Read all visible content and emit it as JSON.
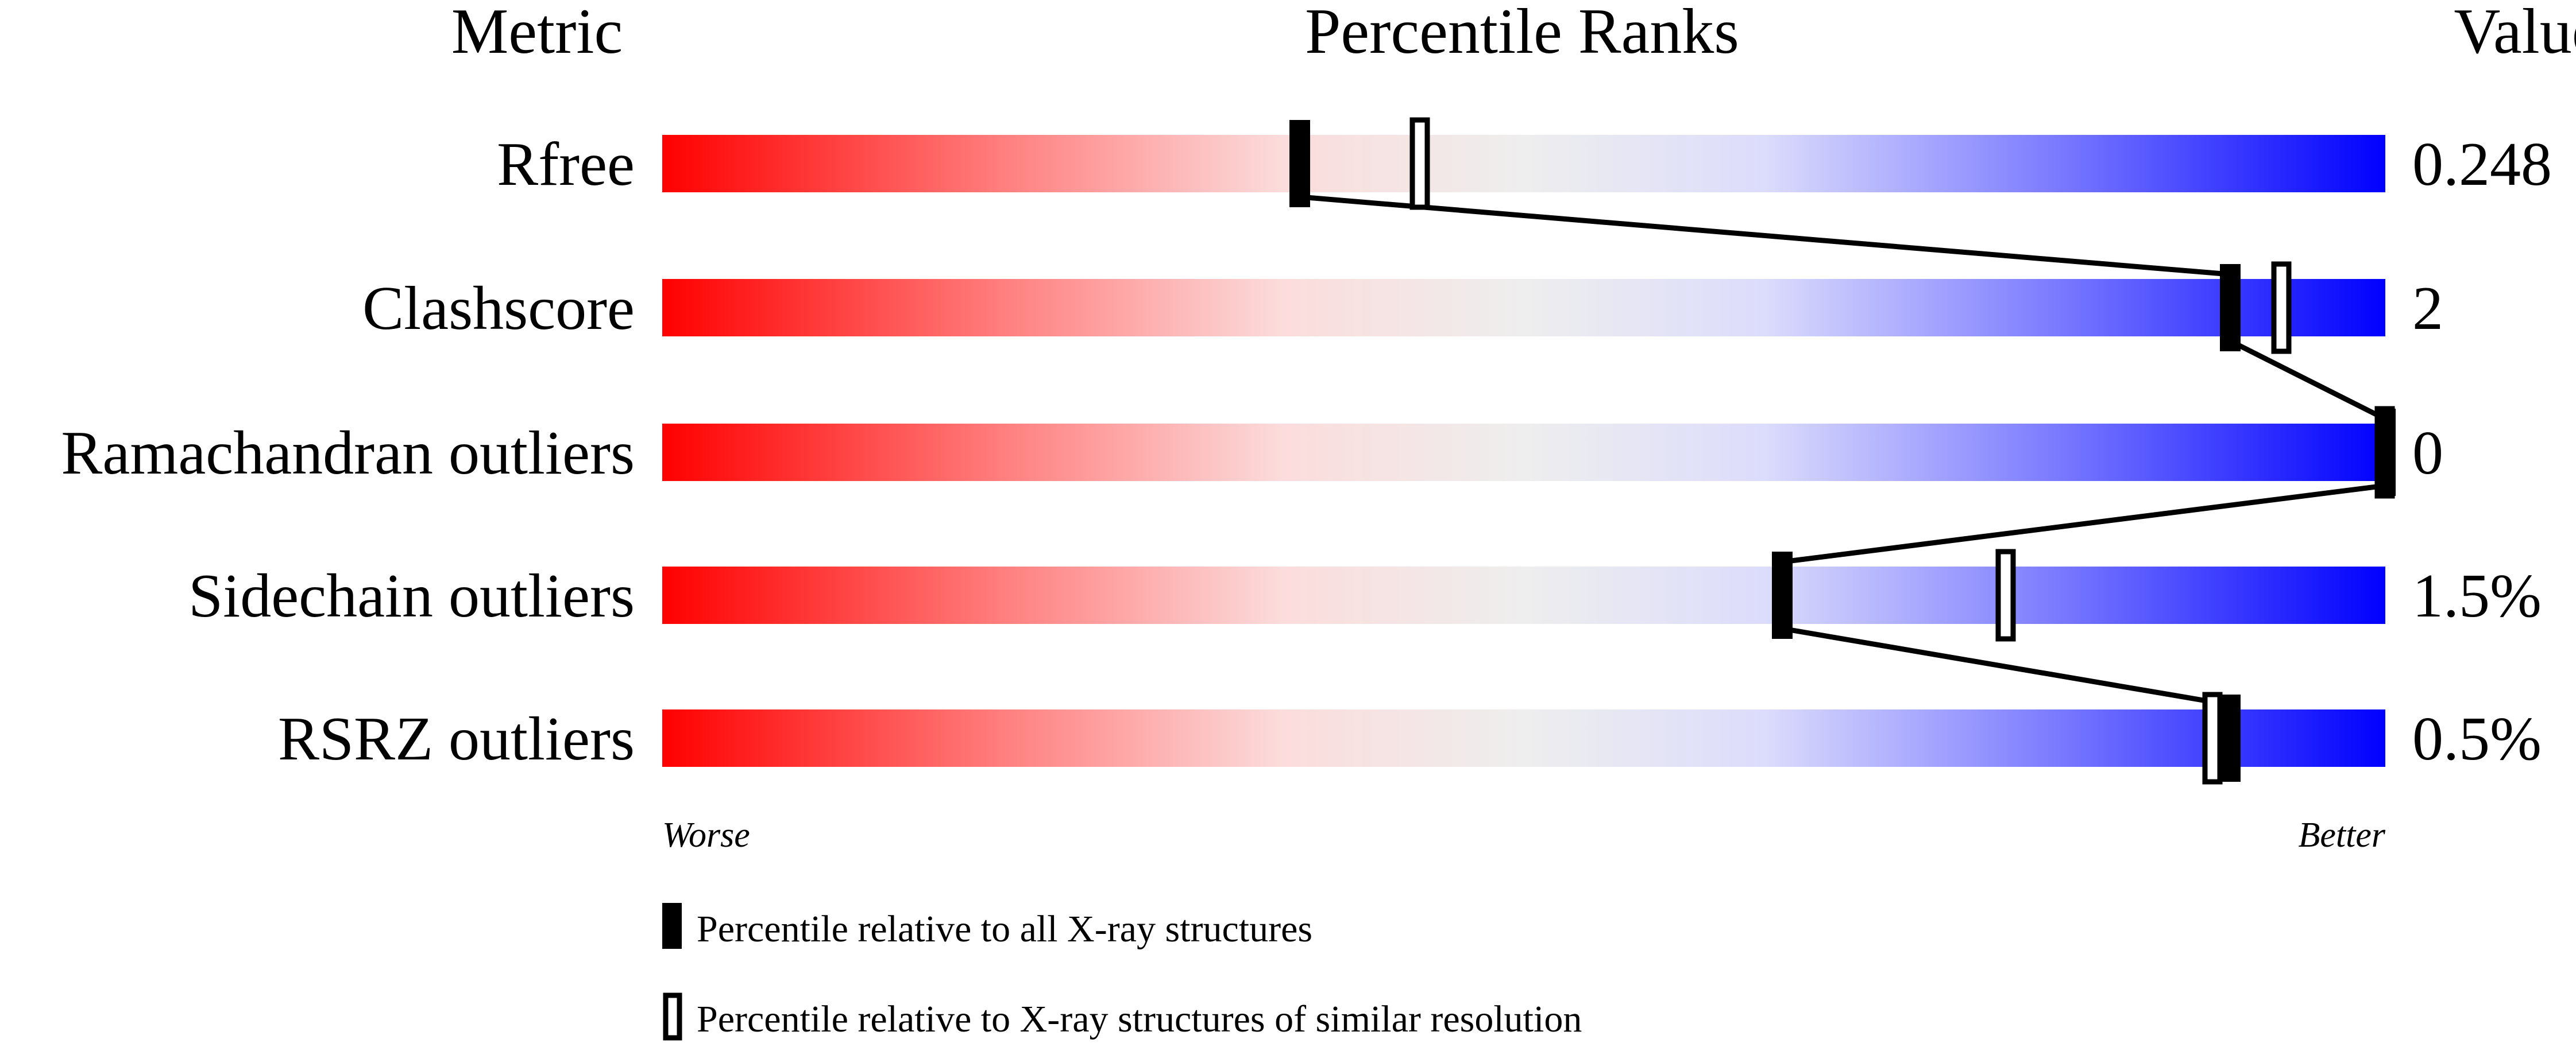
{
  "chart_data": {
    "type": "percentile-bar",
    "headers": {
      "metric": "Metric",
      "percentile": "Percentile Ranks",
      "value": "Value"
    },
    "axis": {
      "worse": "Worse",
      "better": "Better",
      "range": [
        0,
        100
      ]
    },
    "gradient_colors": [
      "#ff0000",
      "#ff8080",
      "#fcdcdc",
      "#eeeeee",
      "#dcdcfc",
      "#8080ff",
      "#0000ff"
    ],
    "rows": [
      {
        "metric": "Rfree",
        "value": "0.248",
        "percentile_all": 37,
        "percentile_similar": 44
      },
      {
        "metric": "Clashscore",
        "value": "2",
        "percentile_all": 91,
        "percentile_similar": 94
      },
      {
        "metric": "Ramachandran outliers",
        "value": "0",
        "percentile_all": 100,
        "percentile_similar": 100
      },
      {
        "metric": "Sidechain outliers",
        "value": "1.5%",
        "percentile_all": 65,
        "percentile_similar": 78
      },
      {
        "metric": "RSRZ outliers",
        "value": "0.5%",
        "percentile_all": 91,
        "percentile_similar": 90
      }
    ],
    "legend": {
      "all": "Percentile relative to all X-ray structures",
      "similar": "Percentile relative to X-ray structures of similar resolution"
    }
  }
}
